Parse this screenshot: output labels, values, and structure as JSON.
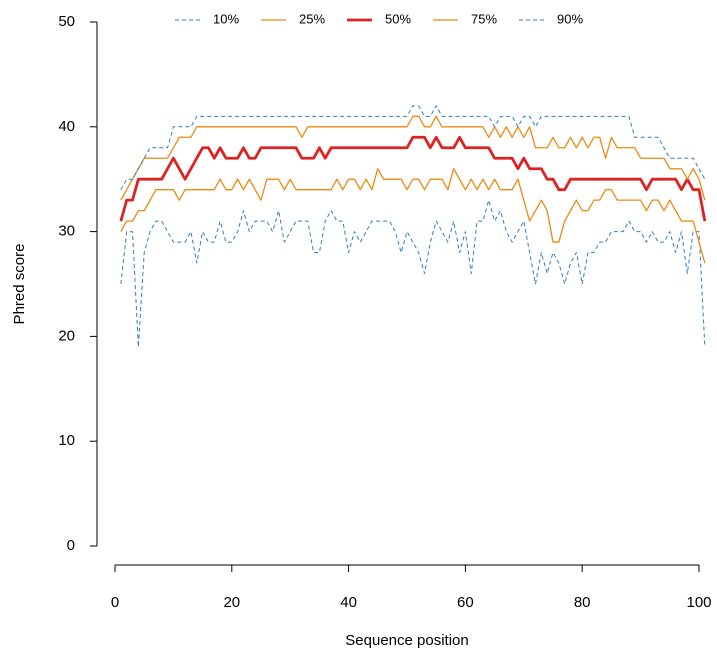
{
  "chart_data": {
    "type": "line",
    "xlabel": "Sequence position",
    "ylabel": "Phred score",
    "x": [
      1,
      2,
      3,
      4,
      5,
      6,
      7,
      8,
      9,
      10,
      11,
      12,
      13,
      14,
      15,
      16,
      17,
      18,
      19,
      20,
      21,
      22,
      23,
      24,
      25,
      26,
      27,
      28,
      29,
      30,
      31,
      32,
      33,
      34,
      35,
      36,
      37,
      38,
      39,
      40,
      41,
      42,
      43,
      44,
      45,
      46,
      47,
      48,
      49,
      50,
      51,
      52,
      53,
      54,
      55,
      56,
      57,
      58,
      59,
      60,
      61,
      62,
      63,
      64,
      65,
      66,
      67,
      68,
      69,
      70,
      71,
      72,
      73,
      74,
      75,
      76,
      77,
      78,
      79,
      80,
      81,
      82,
      83,
      84,
      85,
      86,
      87,
      88,
      89,
      90,
      91,
      92,
      93,
      94,
      95,
      96,
      97,
      98,
      99,
      100,
      101
    ],
    "xlim": [
      0,
      100
    ],
    "xticks": [
      0,
      20,
      40,
      60,
      80,
      100
    ],
    "ylim": [
      0,
      50
    ],
    "yticks": [
      0,
      10,
      20,
      30,
      40,
      50
    ],
    "legend": "top",
    "series": [
      {
        "name": "10%",
        "color": "#2e7fc1",
        "dashed": true,
        "width": 1,
        "values": [
          25,
          30,
          30,
          19,
          28,
          30,
          31,
          31,
          30,
          29,
          29,
          29,
          30,
          27,
          30,
          29,
          29,
          31,
          29,
          29,
          30,
          32,
          30,
          31,
          31,
          31,
          30,
          32,
          29,
          30,
          31,
          31,
          31,
          28,
          28,
          31,
          32,
          31,
          31,
          28,
          30,
          29,
          30,
          31,
          31,
          31,
          31,
          30,
          28,
          30,
          29,
          28,
          26,
          29,
          31,
          30,
          29,
          31,
          28,
          30,
          26,
          31,
          31,
          33,
          31,
          32,
          30,
          29,
          30,
          31,
          28,
          25,
          28,
          26,
          28,
          27,
          25,
          27,
          28,
          25,
          28,
          28,
          29,
          29,
          30,
          30,
          30,
          31,
          30,
          30,
          29,
          30,
          29,
          29,
          30,
          28,
          30,
          26,
          30,
          30,
          19
        ]
      },
      {
        "name": "25%",
        "color": "#ee8a12",
        "dashed": false,
        "width": 1.3,
        "values": [
          30,
          31,
          31,
          32,
          32,
          33,
          34,
          34,
          34,
          34,
          33,
          34,
          34,
          34,
          34,
          34,
          34,
          35,
          34,
          34,
          35,
          34,
          35,
          34,
          33,
          35,
          35,
          35,
          34,
          35,
          34,
          34,
          34,
          34,
          34,
          34,
          34,
          35,
          34,
          35,
          35,
          34,
          35,
          34,
          36,
          35,
          35,
          35,
          35,
          34,
          35,
          35,
          34,
          35,
          35,
          35,
          34,
          36,
          35,
          34,
          35,
          34,
          35,
          34,
          35,
          34,
          34,
          34,
          35,
          33,
          31,
          32,
          33,
          32,
          29,
          29,
          31,
          32,
          33,
          32,
          32,
          33,
          33,
          34,
          34,
          33,
          33,
          33,
          33,
          33,
          32,
          33,
          33,
          32,
          33,
          32,
          31,
          31,
          31,
          29,
          27
        ]
      },
      {
        "name": "50%",
        "color": "#dd2222",
        "dashed": false,
        "width": 2.8,
        "values": [
          31,
          33,
          33,
          35,
          35,
          35,
          35,
          35,
          36,
          37,
          36,
          35,
          36,
          37,
          38,
          38,
          37,
          38,
          37,
          37,
          37,
          38,
          37,
          37,
          38,
          38,
          38,
          38,
          38,
          38,
          38,
          37,
          37,
          37,
          38,
          37,
          38,
          38,
          38,
          38,
          38,
          38,
          38,
          38,
          38,
          38,
          38,
          38,
          38,
          38,
          39,
          39,
          39,
          38,
          39,
          38,
          38,
          38,
          39,
          38,
          38,
          38,
          38,
          38,
          37,
          37,
          37,
          37,
          36,
          37,
          36,
          36,
          36,
          35,
          35,
          34,
          34,
          35,
          35,
          35,
          35,
          35,
          35,
          35,
          35,
          35,
          35,
          35,
          35,
          35,
          34,
          35,
          35,
          35,
          35,
          35,
          34,
          35,
          34,
          34,
          31
        ]
      },
      {
        "name": "75%",
        "color": "#ee8a12",
        "dashed": false,
        "width": 1.3,
        "values": [
          33,
          34,
          35,
          36,
          37,
          37,
          37,
          37,
          37,
          38,
          39,
          39,
          39,
          40,
          40,
          40,
          40,
          40,
          40,
          40,
          40,
          40,
          40,
          40,
          40,
          40,
          40,
          40,
          40,
          40,
          40,
          39,
          40,
          40,
          40,
          40,
          40,
          40,
          40,
          40,
          40,
          40,
          40,
          40,
          40,
          40,
          40,
          40,
          40,
          40,
          41,
          41,
          40,
          40,
          41,
          40,
          40,
          40,
          40,
          40,
          40,
          40,
          40,
          39,
          40,
          39,
          40,
          39,
          40,
          39,
          40,
          38,
          38,
          38,
          39,
          38,
          38,
          39,
          38,
          39,
          38,
          39,
          39,
          37,
          39,
          38,
          38,
          38,
          38,
          37,
          37,
          37,
          37,
          37,
          36,
          36,
          36,
          35,
          36,
          35,
          33
        ]
      },
      {
        "name": "90%",
        "color": "#2e7fc1",
        "dashed": true,
        "width": 1,
        "values": [
          34,
          35,
          35,
          36,
          37,
          38,
          38,
          38,
          38,
          40,
          40,
          40,
          40,
          41,
          41,
          41,
          41,
          41,
          41,
          41,
          41,
          41,
          41,
          41,
          41,
          41,
          41,
          41,
          41,
          41,
          41,
          41,
          41,
          41,
          41,
          41,
          41,
          41,
          41,
          41,
          41,
          41,
          41,
          41,
          41,
          41,
          41,
          41,
          41,
          41,
          42,
          42,
          41,
          41,
          42,
          41,
          41,
          41,
          41,
          41,
          41,
          41,
          41,
          41,
          40,
          41,
          41,
          41,
          40,
          41,
          41,
          40,
          41,
          41,
          41,
          41,
          41,
          41,
          41,
          41,
          41,
          41,
          41,
          41,
          41,
          41,
          41,
          41,
          39,
          39,
          39,
          39,
          39,
          38,
          37,
          37,
          37,
          37,
          37,
          36,
          35
        ]
      }
    ]
  }
}
